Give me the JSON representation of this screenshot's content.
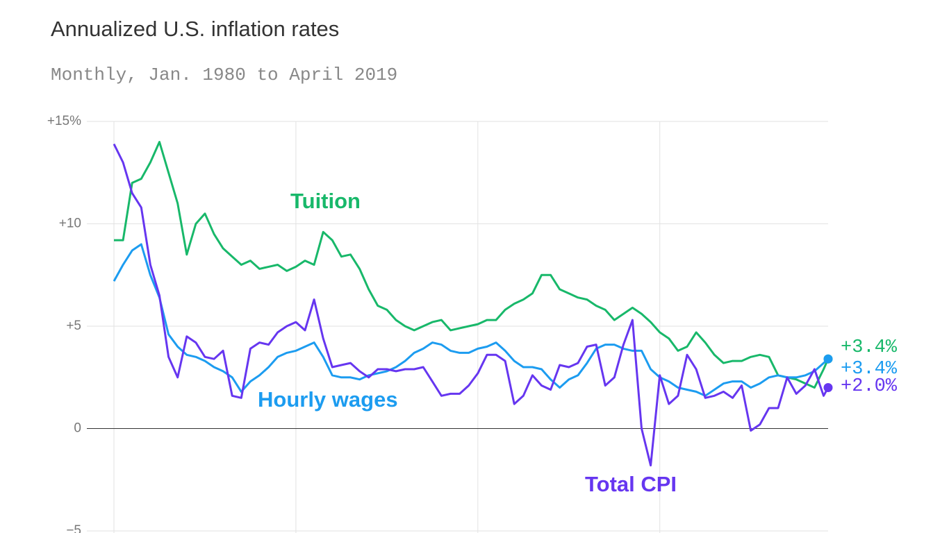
{
  "chart_data": {
    "type": "line",
    "title": "Annualized U.S. inflation rates",
    "subtitle": "Monthly, Jan. 1980 to April 2019",
    "x": [
      1980,
      1980.5,
      1981,
      1981.5,
      1982,
      1982.5,
      1983,
      1983.5,
      1984,
      1984.5,
      1985,
      1985.5,
      1986,
      1986.5,
      1987,
      1987.5,
      1988,
      1988.5,
      1989,
      1989.5,
      1990,
      1990.5,
      1991,
      1991.5,
      1992,
      1992.5,
      1993,
      1993.5,
      1994,
      1994.5,
      1995,
      1995.5,
      1996,
      1996.5,
      1997,
      1997.5,
      1998,
      1998.5,
      1999,
      1999.5,
      2000,
      2000.5,
      2001,
      2001.5,
      2002,
      2002.5,
      2003,
      2003.5,
      2004,
      2004.5,
      2005,
      2005.5,
      2006,
      2006.5,
      2007,
      2007.5,
      2008,
      2008.5,
      2009,
      2009.5,
      2010,
      2010.5,
      2011,
      2011.5,
      2012,
      2012.5,
      2013,
      2013.5,
      2014,
      2014.5,
      2015,
      2015.5,
      2016,
      2016.5,
      2017,
      2017.5,
      2018,
      2018.5,
      2019,
      2019.25
    ],
    "xlim": [
      1980,
      2019.25
    ],
    "xticks": [
      1980,
      1990,
      2000,
      2010
    ],
    "ylim": [
      -5,
      15
    ],
    "yticks": [
      {
        "value": -5,
        "label": "−5"
      },
      0,
      {
        "value": 5,
        "label": "+5"
      },
      {
        "value": 10,
        "label": "+10"
      },
      {
        "value": 15,
        "label": "+15%"
      }
    ],
    "grid": true,
    "series": [
      {
        "name": "Tuition",
        "color": "#18b86a",
        "end_label": "+3.4%",
        "values": [
          9.2,
          9.2,
          12.0,
          12.2,
          13.0,
          14.0,
          12.5,
          11.0,
          8.5,
          10.0,
          10.5,
          9.5,
          8.8,
          8.4,
          8.0,
          8.2,
          7.8,
          7.9,
          8.0,
          7.7,
          7.9,
          8.2,
          8.0,
          9.6,
          9.2,
          8.4,
          8.5,
          7.8,
          6.8,
          6.0,
          5.8,
          5.3,
          5.0,
          4.8,
          5.0,
          5.2,
          5.3,
          4.8,
          4.9,
          5.0,
          5.1,
          5.3,
          5.3,
          5.8,
          6.1,
          6.3,
          6.6,
          7.5,
          7.5,
          6.8,
          6.6,
          6.4,
          6.3,
          6.0,
          5.8,
          5.3,
          5.6,
          5.9,
          5.6,
          5.2,
          4.7,
          4.4,
          3.8,
          4.0,
          4.7,
          4.2,
          3.6,
          3.2,
          3.3,
          3.3,
          3.5,
          3.6,
          3.5,
          2.6,
          2.5,
          2.4,
          2.2,
          2.0,
          2.9,
          3.4
        ]
      },
      {
        "name": "Hourly wages",
        "color": "#1c9cf0",
        "end_label": "+3.4%",
        "values": [
          7.2,
          8.0,
          8.7,
          9.0,
          7.5,
          6.4,
          4.6,
          4.0,
          3.6,
          3.5,
          3.3,
          3.0,
          2.8,
          2.5,
          1.8,
          2.3,
          2.6,
          3.0,
          3.5,
          3.7,
          3.8,
          4.0,
          4.2,
          3.5,
          2.6,
          2.5,
          2.5,
          2.4,
          2.6,
          2.7,
          2.8,
          3.0,
          3.3,
          3.7,
          3.9,
          4.2,
          4.1,
          3.8,
          3.7,
          3.7,
          3.9,
          4.0,
          4.2,
          3.8,
          3.3,
          3.0,
          3.0,
          2.9,
          2.4,
          2.0,
          2.4,
          2.6,
          3.2,
          3.9,
          4.1,
          4.1,
          3.9,
          3.8,
          3.8,
          2.9,
          2.5,
          2.3,
          2.0,
          1.9,
          1.8,
          1.6,
          1.9,
          2.2,
          2.3,
          2.3,
          2.0,
          2.2,
          2.5,
          2.6,
          2.5,
          2.5,
          2.6,
          2.8,
          3.2,
          3.4
        ]
      },
      {
        "name": "Total CPI",
        "color": "#6636f0",
        "end_label": "+2.0%",
        "values": [
          13.9,
          13.0,
          11.5,
          10.8,
          8.0,
          6.5,
          3.5,
          2.5,
          4.5,
          4.2,
          3.5,
          3.4,
          3.8,
          1.6,
          1.5,
          3.9,
          4.2,
          4.1,
          4.7,
          5.0,
          5.2,
          4.8,
          6.3,
          4.4,
          3.0,
          3.1,
          3.2,
          2.8,
          2.5,
          2.9,
          2.9,
          2.8,
          2.9,
          2.9,
          3.0,
          2.3,
          1.6,
          1.7,
          1.7,
          2.1,
          2.7,
          3.6,
          3.6,
          3.3,
          1.2,
          1.6,
          2.6,
          2.1,
          1.9,
          3.1,
          3.0,
          3.2,
          4.0,
          4.1,
          2.1,
          2.5,
          4.1,
          5.3,
          0.0,
          -1.8,
          2.6,
          1.2,
          1.6,
          3.6,
          2.9,
          1.5,
          1.6,
          1.8,
          1.5,
          2.1,
          -0.1,
          0.2,
          1.0,
          1.0,
          2.5,
          1.7,
          2.1,
          2.9,
          1.6,
          2.0
        ]
      }
    ]
  }
}
